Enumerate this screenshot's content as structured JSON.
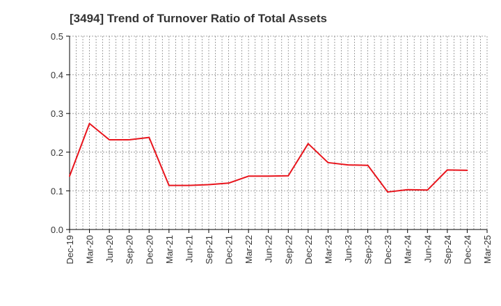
{
  "chart_data": {
    "type": "line",
    "title": "[3494]  Trend of Turnover Ratio of Total Assets",
    "xlabel": "",
    "ylabel": "",
    "ylim": [
      0,
      0.5
    ],
    "yticks": [
      "0.0",
      "0.1",
      "0.2",
      "0.3",
      "0.4",
      "0.5"
    ],
    "x_tick_labels": [
      "Dec-19",
      "Mar-20",
      "Jun-20",
      "Sep-20",
      "Dec-20",
      "Mar-21",
      "Jun-21",
      "Sep-21",
      "Dec-21",
      "Mar-22",
      "Jun-22",
      "Sep-22",
      "Dec-22",
      "Mar-23",
      "Jun-23",
      "Sep-23",
      "Dec-23",
      "Mar-24",
      "Jun-24",
      "Sep-24",
      "Dec-24",
      "Mar-25"
    ],
    "grid": true,
    "grid_style": "dotted",
    "series": [
      {
        "color": "#e8141c",
        "x": [
          "Dec-19",
          "Mar-20",
          "Jun-20",
          "Sep-20",
          "Dec-20",
          "Mar-21",
          "Jun-21",
          "Sep-21",
          "Dec-21",
          "Mar-22",
          "Jun-22",
          "Sep-22",
          "Dec-22",
          "Mar-23",
          "Jun-23",
          "Sep-23",
          "Dec-23",
          "Mar-24",
          "Jun-24",
          "Sep-24",
          "Dec-24"
        ],
        "values": [
          0.138,
          0.274,
          0.232,
          0.232,
          0.238,
          0.114,
          0.114,
          0.116,
          0.12,
          0.138,
          0.138,
          0.139,
          0.222,
          0.173,
          0.167,
          0.166,
          0.097,
          0.103,
          0.102,
          0.154,
          0.153
        ]
      }
    ]
  }
}
